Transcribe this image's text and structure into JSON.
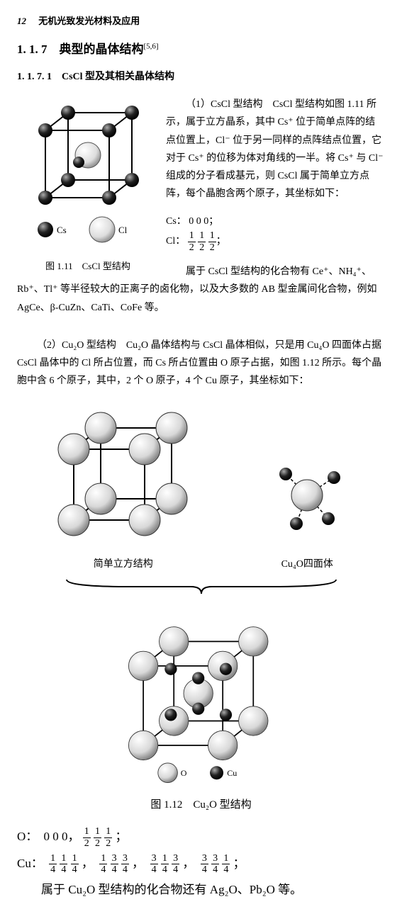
{
  "page": {
    "number": "12",
    "book_title": "无机光致发光材料及应用"
  },
  "headings": {
    "h1": "1. 1. 7　典型的晶体结构",
    "h1_sup": "[5,6]",
    "h2": "1. 1. 7. 1　CsCl 型及其相关晶体结构"
  },
  "para1_lead": "（1）CsCl 型结构　CsCl 型结构如图 1.11 所示，属于立方晶系，其中 Cs⁺ 位于简单点阵的结点位置上，Cl⁻ 位于另一同样的点阵结点位置，它对于 Cs⁺ 的位移为体对角线的一半。将 Cs⁺ 与 Cl⁻ 组成的分子看成基元，则 CsCl 属于简单立方点阵，每个晶胞含两个原子，其坐标如下：",
  "coords1": {
    "cs_label": "Cs：",
    "cs_val": "0 0 0；",
    "cl_label": "Cl："
  },
  "para2": "属于 CsCl 型结构的化合物有 Ce⁺、NH₄⁺、Rb⁺、Tl⁺ 等半径较大的正离子的卤化物，以及大多数的 AB 型金属间化合物，例如 AgCe、β-CuZn、CaTi、CoFe 等。",
  "fig111": {
    "caption": "图 1.11　CsCl 型结构",
    "legend_cs": "Cs",
    "legend_cl": "Cl"
  },
  "para3": "（2）Cu₂O 型结构　Cu₂O 晶体结构与 CsCl 晶体相似，只是用 Cu₄O 四面体占据 CsCl 晶体中的 Cl 所占位置，而 Cs 所占位置由 O 原子占据，如图 1.12 所示。每个晶胞中含 6 个原子，其中，2 个 O 原子，4 个 Cu 原子，其坐标如下：",
  "fig112": {
    "sub1_caption": "简单立方结构",
    "sub2_caption": "Cu₄O四面体",
    "legend_o": "O",
    "legend_cu": "Cu",
    "caption": "图 1.12　Cu₂O 型结构"
  },
  "coords2": {
    "o_label": "O：",
    "o_first": "0 0 0，",
    "o_trail": "；",
    "cu_label": "Cu：",
    "cu_fracs": [
      [
        "1",
        "1",
        "1"
      ],
      [
        "1",
        "3",
        "3"
      ],
      [
        "3",
        "1",
        "3"
      ],
      [
        "3",
        "3",
        "1"
      ]
    ],
    "cu_trail": "；"
  },
  "final": "属于 Cu₂O 型结构的化合物还有 Ag₂O、Pb₂O 等。",
  "style": {
    "text_color": "#000000",
    "bg_color": "#ffffff",
    "cs_atom_color": "#1a1a1a",
    "cl_atom_color": "#e8e8e8",
    "o_atom_color": "#e8e8e8",
    "cu_atom_color": "#2a2a2a",
    "stroke": "#000000",
    "body_fontsize": 14,
    "heading_fontsize": 17,
    "coord_fontsize": 17
  }
}
